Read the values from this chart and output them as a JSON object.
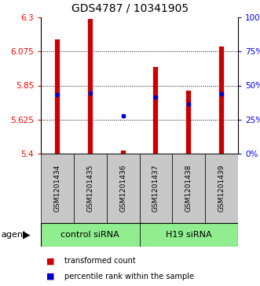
{
  "title": "GDS4787 / 10341905",
  "samples": [
    "GSM1201434",
    "GSM1201435",
    "GSM1201436",
    "GSM1201437",
    "GSM1201438",
    "GSM1201439"
  ],
  "group_labels": [
    "control siRNA",
    "H19 siRNA"
  ],
  "group_color": "#90EE90",
  "bar_bottom": 5.4,
  "bar_tops": [
    6.155,
    6.29,
    5.42,
    5.97,
    5.815,
    6.105
  ],
  "blue_dots": [
    5.79,
    5.8,
    5.65,
    5.775,
    5.728,
    5.793
  ],
  "ylim": [
    5.4,
    6.3
  ],
  "left_yticks": [
    5.4,
    5.625,
    5.85,
    6.075,
    6.3
  ],
  "right_yticks": [
    0,
    25,
    50,
    75,
    100
  ],
  "bar_color": "#CC0000",
  "blue_color": "#0000CC",
  "sample_box_color": "#C8C8C8",
  "title_fontsize": 10,
  "tick_fontsize": 7.5,
  "sample_fontsize": 6.5,
  "group_fontsize": 8,
  "legend_fontsize": 7,
  "agent_fontsize": 8,
  "legend_red": "transformed count",
  "legend_blue": "percentile rank within the sample"
}
